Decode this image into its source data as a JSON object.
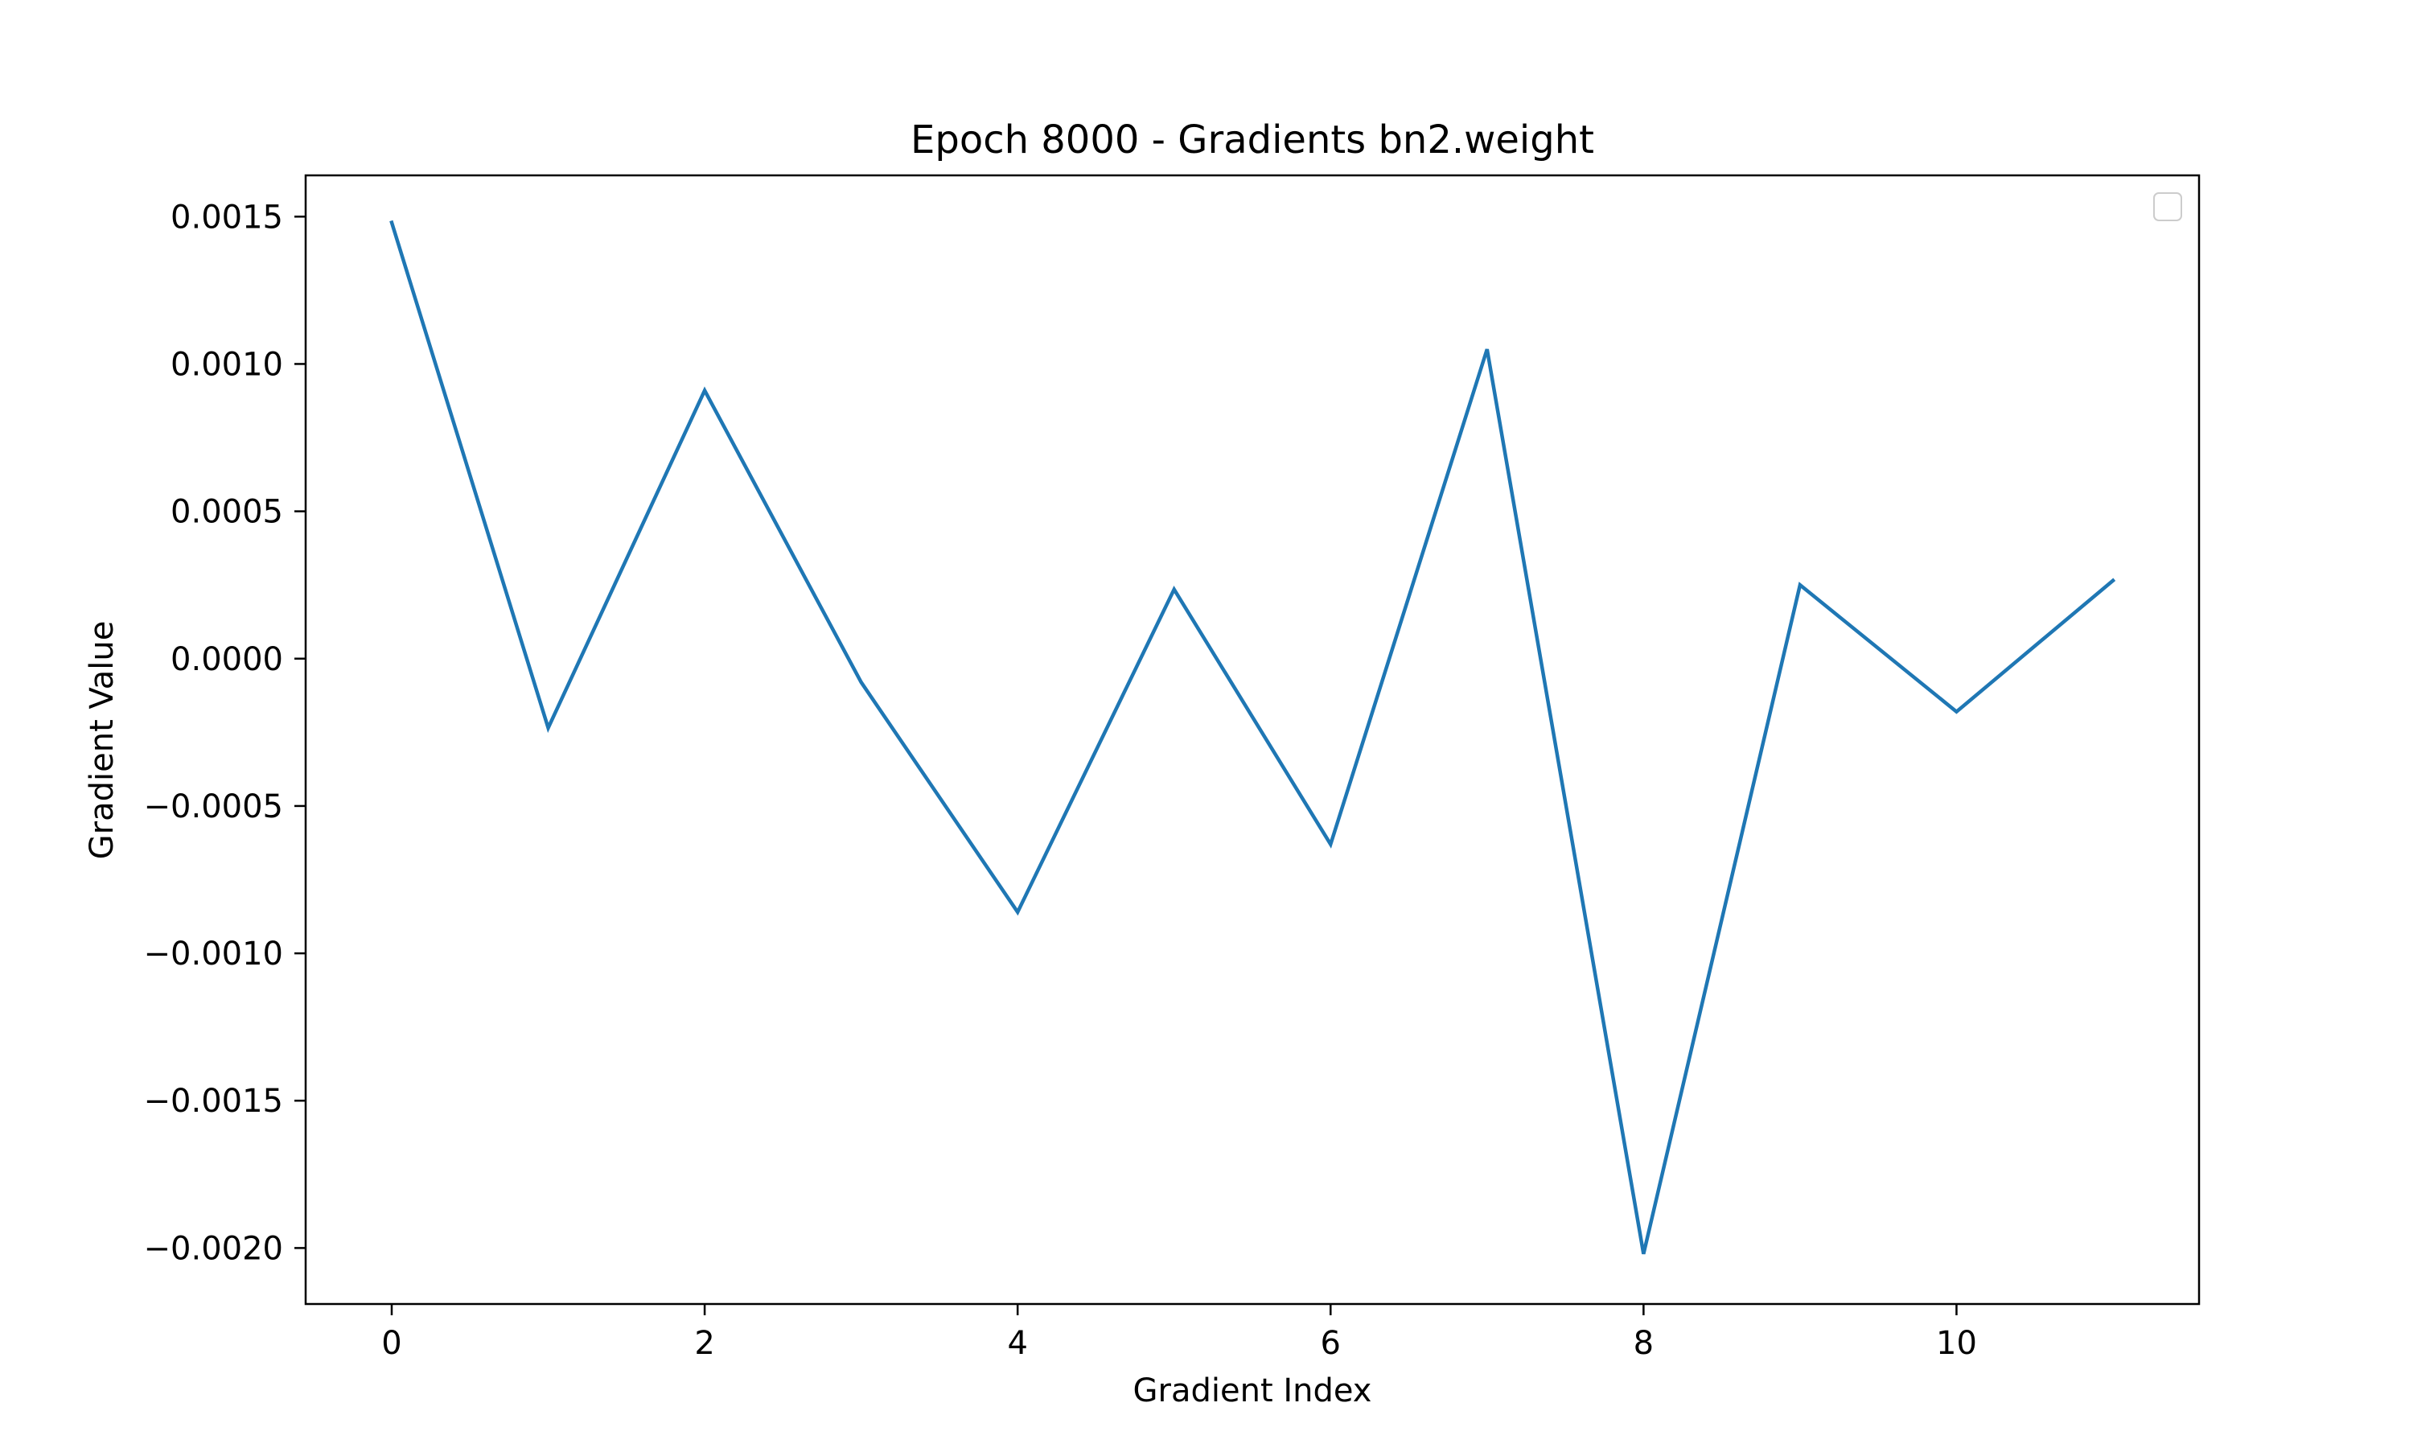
{
  "chart_data": {
    "type": "line",
    "title": "Epoch 8000 - Gradients bn2.weight",
    "xlabel": "Gradient Index",
    "ylabel": "Gradient Value",
    "x": [
      0,
      1,
      2,
      3,
      4,
      5,
      6,
      7,
      8,
      9,
      10,
      11
    ],
    "series": [
      {
        "values": [
          0.00148,
          -0.000235,
          0.00091,
          -8e-05,
          -0.00086,
          0.000235,
          -0.00063,
          0.00105,
          -0.00202,
          0.00025,
          -0.00018,
          0.000265
        ],
        "color": "#1f77b4"
      }
    ],
    "xlim": [
      -0.55,
      11.55
    ],
    "ylim": [
      -0.00219,
      0.00164
    ],
    "xticks": [
      0,
      2,
      4,
      6,
      8,
      10
    ],
    "xtick_labels": [
      "0",
      "2",
      "4",
      "6",
      "8",
      "10"
    ],
    "yticks": [
      0.0015,
      0.001,
      0.0005,
      0.0,
      -0.0005,
      -0.001,
      -0.0015,
      -0.002
    ],
    "ytick_labels": [
      "0.0015",
      "0.0010",
      "0.0005",
      "0.0000",
      "−0.0005",
      "−0.0010",
      "−0.0015",
      "−0.0020"
    ],
    "grid": false,
    "legend": {
      "position": "upper right",
      "entries": []
    }
  }
}
